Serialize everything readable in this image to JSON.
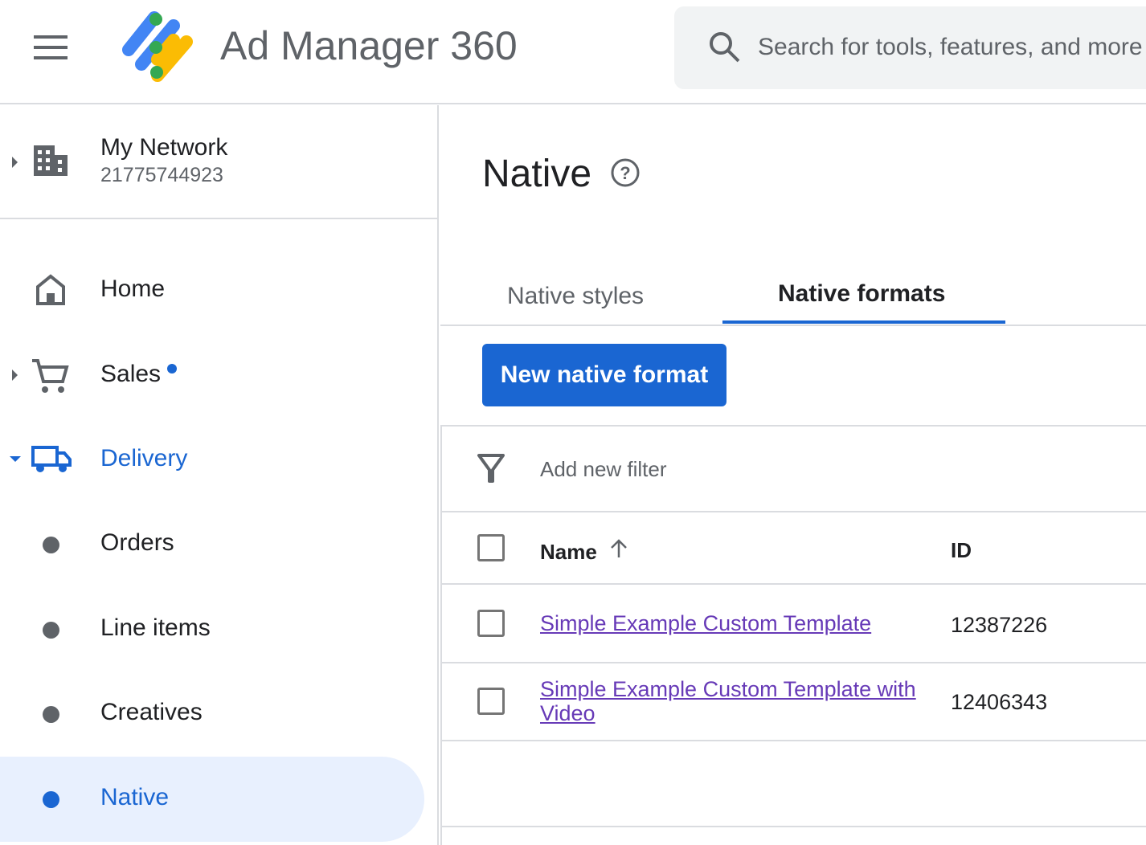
{
  "header": {
    "app_title": "Ad Manager 360",
    "search_placeholder": "Search for tools, features, and more",
    "icons": [
      "menu-icon",
      "logo",
      "search-icon"
    ]
  },
  "network": {
    "name": "My Network",
    "id": "21775744923"
  },
  "sidebar": {
    "items": [
      {
        "label": "Home",
        "icon": "home-icon"
      },
      {
        "label": "Sales",
        "icon": "cart-icon",
        "badge": true
      },
      {
        "label": "Delivery",
        "icon": "truck-icon",
        "expanded": true
      },
      {
        "label": "Orders"
      },
      {
        "label": "Line items"
      },
      {
        "label": "Creatives"
      },
      {
        "label": "Native",
        "active": true
      }
    ]
  },
  "main": {
    "title": "Native",
    "tabs": [
      {
        "label": "Native styles"
      },
      {
        "label": "Native formats",
        "active": true
      }
    ],
    "new_button": "New native format",
    "filter_placeholder": "Add new filter",
    "columns": [
      "Name",
      "ID"
    ],
    "rows": [
      {
        "name": "Simple Example Custom Template",
        "id": "12387226"
      },
      {
        "name": "Simple Example Custom Template with Video",
        "id": "12406343"
      }
    ]
  },
  "colors": {
    "accent": "#1a66d2",
    "link": "#673ab7",
    "active_bg": "#e8f0fe"
  }
}
